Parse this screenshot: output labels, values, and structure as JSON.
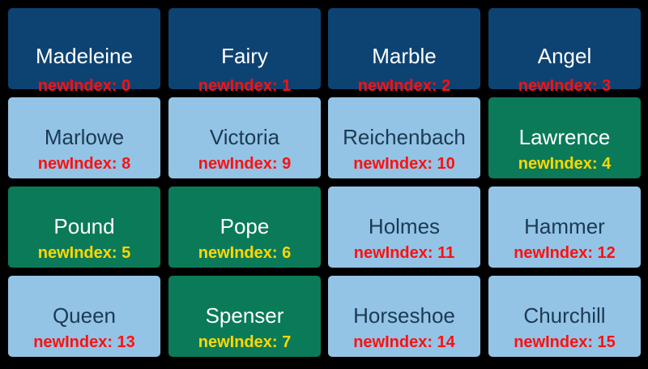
{
  "cells": [
    {
      "name": "Madeleine",
      "index": "newIndex: 0",
      "style": "dark"
    },
    {
      "name": "Fairy",
      "index": "newIndex: 1",
      "style": "dark"
    },
    {
      "name": "Marble",
      "index": "newIndex: 2",
      "style": "dark"
    },
    {
      "name": "Angel",
      "index": "newIndex: 3",
      "style": "dark"
    },
    {
      "name": "Marlowe",
      "index": "newIndex: 8",
      "style": "light"
    },
    {
      "name": "Victoria",
      "index": "newIndex: 9",
      "style": "light"
    },
    {
      "name": "Reichenbach",
      "index": "newIndex: 10",
      "style": "light"
    },
    {
      "name": "Lawrence",
      "index": "newIndex: 4",
      "style": "green"
    },
    {
      "name": "Pound",
      "index": "newIndex: 5",
      "style": "green"
    },
    {
      "name": "Pope",
      "index": "newIndex: 6",
      "style": "green"
    },
    {
      "name": "Holmes",
      "index": "newIndex: 11",
      "style": "light"
    },
    {
      "name": "Hammer",
      "index": "newIndex: 12",
      "style": "light"
    },
    {
      "name": "Queen",
      "index": "newIndex: 13",
      "style": "light"
    },
    {
      "name": "Spenser",
      "index": "newIndex: 7",
      "style": "green"
    },
    {
      "name": "Horseshoe",
      "index": "newIndex: 14",
      "style": "light"
    },
    {
      "name": "Churchill",
      "index": "newIndex: 15",
      "style": "light"
    }
  ],
  "colors": {
    "dark": "#0d4372",
    "light": "#93c4e6",
    "green": "#0b7a58",
    "index_red": "#ff1010",
    "index_yellow": "#ffd800"
  }
}
